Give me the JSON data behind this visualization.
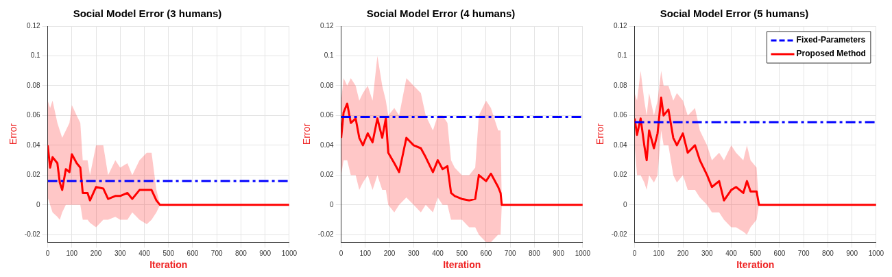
{
  "chart_data": [
    {
      "type": "line",
      "title": "Social Model Error (3 humans)",
      "xlabel": "Iteration",
      "ylabel": "Error",
      "xlim": [
        0,
        1000
      ],
      "xticks": [
        0,
        100,
        200,
        300,
        400,
        500,
        600,
        700,
        800,
        900,
        1000
      ],
      "ylim": [
        -0.025,
        0.12
      ],
      "yticks": [
        -0.02,
        0,
        0.02,
        0.04,
        0.06,
        0.08,
        0.1,
        0.12
      ],
      "grid": true,
      "legend": false,
      "marker": "none",
      "series": [
        {
          "color": "#0000ff",
          "line_style": "dashed",
          "x": [
            0,
            1000
          ],
          "values": [
            0.016,
            0.016
          ]
        },
        {
          "color": "#ff0000",
          "line_style": "solid",
          "x": [
            0,
            10,
            20,
            40,
            50,
            60,
            75,
            90,
            100,
            120,
            135,
            145,
            165,
            175,
            200,
            230,
            250,
            280,
            300,
            330,
            350,
            380,
            410,
            430,
            450,
            465,
            1000
          ],
          "values": [
            0.04,
            0.025,
            0.032,
            0.028,
            0.015,
            0.01,
            0.024,
            0.022,
            0.034,
            0.028,
            0.025,
            0.008,
            0.008,
            0.003,
            0.012,
            0.011,
            0.004,
            0.006,
            0.006,
            0.008,
            0.004,
            0.01,
            0.01,
            0.01,
            0.003,
            0,
            0
          ],
          "lower": [
            0.005,
            0,
            -0.005,
            -0.008,
            -0.01,
            -0.005,
            0,
            0,
            0,
            0,
            0,
            -0.01,
            -0.01,
            -0.012,
            -0.015,
            -0.01,
            -0.01,
            -0.008,
            -0.01,
            -0.01,
            -0.005,
            -0.01,
            -0.013,
            -0.01,
            -0.005,
            0,
            0
          ],
          "upper": [
            0.07,
            0.065,
            0.07,
            0.055,
            0.05,
            0.045,
            0.05,
            0.055,
            0.067,
            0.06,
            0.055,
            0.03,
            0.03,
            0.02,
            0.04,
            0.04,
            0.02,
            0.03,
            0.025,
            0.028,
            0.02,
            0.03,
            0.035,
            0.035,
            0.01,
            0,
            0
          ]
        }
      ]
    },
    {
      "type": "line",
      "title": "Social Model Error (4 humans)",
      "xlabel": "Iteration",
      "ylabel": "Error",
      "xlim": [
        0,
        1000
      ],
      "xticks": [
        0,
        100,
        200,
        300,
        400,
        500,
        600,
        700,
        800,
        900,
        1000
      ],
      "ylim": [
        -0.025,
        0.12
      ],
      "yticks": [
        -0.02,
        0,
        0.02,
        0.04,
        0.06,
        0.08,
        0.1,
        0.12
      ],
      "grid": true,
      "legend": false,
      "marker": "none",
      "series": [
        {
          "color": "#0000ff",
          "line_style": "dashed",
          "x": [
            0,
            1000
          ],
          "values": [
            0.059,
            0.059
          ]
        },
        {
          "color": "#ff0000",
          "line_style": "solid",
          "x": [
            0,
            10,
            25,
            40,
            60,
            75,
            90,
            110,
            130,
            150,
            170,
            185,
            195,
            220,
            240,
            270,
            300,
            330,
            350,
            380,
            400,
            420,
            440,
            455,
            470,
            500,
            530,
            555,
            570,
            600,
            620,
            650,
            660,
            665,
            1000
          ],
          "values": [
            0.045,
            0.062,
            0.068,
            0.055,
            0.058,
            0.045,
            0.04,
            0.048,
            0.042,
            0.058,
            0.045,
            0.058,
            0.035,
            0.028,
            0.022,
            0.045,
            0.04,
            0.038,
            0.032,
            0.022,
            0.03,
            0.024,
            0.026,
            0.008,
            0.006,
            0.004,
            0.003,
            0.004,
            0.02,
            0.016,
            0.021,
            0.012,
            0.008,
            0,
            0
          ],
          "lower": [
            0.02,
            0.03,
            0.03,
            0.02,
            0.02,
            0.01,
            0.015,
            0.02,
            0.01,
            0.02,
            0.01,
            0.01,
            0,
            -0.005,
            0,
            0.005,
            0,
            -0.005,
            0,
            -0.005,
            0.005,
            0,
            0,
            -0.01,
            -0.01,
            -0.01,
            -0.015,
            -0.015,
            -0.02,
            -0.025,
            -0.025,
            -0.02,
            -0.02,
            0,
            0
          ],
          "upper": [
            0.07,
            0.085,
            0.08,
            0.085,
            0.08,
            0.07,
            0.075,
            0.08,
            0.07,
            0.1,
            0.08,
            0.07,
            0.06,
            0.065,
            0.06,
            0.085,
            0.08,
            0.075,
            0.06,
            0.05,
            0.06,
            0.06,
            0.055,
            0.03,
            0.025,
            0.02,
            0.02,
            0.025,
            0.06,
            0.07,
            0.065,
            0.05,
            0.05,
            0,
            0
          ]
        }
      ]
    },
    {
      "type": "line",
      "title": "Social Model Error (5 humans)",
      "xlabel": "Iteration",
      "ylabel": "Error",
      "xlim": [
        0,
        1000
      ],
      "xticks": [
        0,
        100,
        200,
        300,
        400,
        500,
        600,
        700,
        800,
        900,
        1000
      ],
      "ylim": [
        -0.025,
        0.12
      ],
      "yticks": [
        -0.02,
        0,
        0.02,
        0.04,
        0.06,
        0.08,
        0.1,
        0.12
      ],
      "grid": true,
      "legend": "top right",
      "marker": "none",
      "series": [
        {
          "name": "Fixed-Parameters",
          "color": "#0000ff",
          "line_style": "dashed",
          "x": [
            0,
            1000
          ],
          "values": [
            0.0555,
            0.0555
          ]
        },
        {
          "name": "Proposed Method",
          "color": "#ff0000",
          "line_style": "solid",
          "x": [
            0,
            10,
            25,
            40,
            50,
            60,
            80,
            95,
            110,
            120,
            140,
            160,
            175,
            200,
            220,
            250,
            270,
            300,
            320,
            350,
            370,
            400,
            420,
            450,
            465,
            480,
            505,
            515,
            1000
          ],
          "values": [
            0.058,
            0.047,
            0.058,
            0.04,
            0.03,
            0.05,
            0.038,
            0.048,
            0.072,
            0.06,
            0.064,
            0.045,
            0.04,
            0.048,
            0.035,
            0.04,
            0.03,
            0.02,
            0.012,
            0.016,
            0.003,
            0.01,
            0.012,
            0.008,
            0.016,
            0.009,
            0.009,
            0,
            0
          ],
          "lower": [
            0.04,
            0.02,
            0.02,
            0.015,
            0.01,
            0.02,
            0.015,
            0.02,
            0.05,
            0.04,
            0.04,
            0.02,
            0.015,
            0.02,
            0.01,
            0.01,
            0.005,
            0,
            -0.005,
            -0.005,
            -0.01,
            -0.015,
            -0.015,
            -0.018,
            -0.02,
            -0.015,
            -0.01,
            0,
            0
          ],
          "upper": [
            0.075,
            0.07,
            0.09,
            0.07,
            0.06,
            0.075,
            0.06,
            0.07,
            0.09,
            0.08,
            0.08,
            0.07,
            0.075,
            0.07,
            0.06,
            0.065,
            0.05,
            0.04,
            0.03,
            0.035,
            0.03,
            0.04,
            0.035,
            0.03,
            0.04,
            0.03,
            0.025,
            0,
            0
          ]
        }
      ]
    }
  ]
}
